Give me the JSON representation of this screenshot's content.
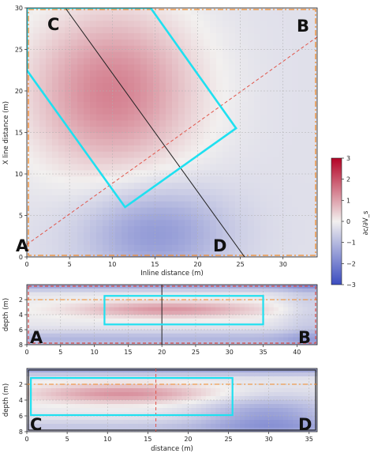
{
  "chart_data": [
    {
      "type": "heatmap",
      "panel": "plan-view",
      "xlabel": "Inline distance (m)",
      "ylabel": "X line distance (m)",
      "xlim": [
        0,
        34
      ],
      "ylim": [
        0,
        30
      ],
      "xticks": [
        0,
        5,
        10,
        15,
        20,
        25,
        30
      ],
      "yticks": [
        0,
        5,
        10,
        15,
        20,
        25,
        30
      ],
      "grid": true,
      "corner_labels": [
        "A",
        "B",
        "C",
        "D"
      ],
      "profile_AB": {
        "from": [
          0,
          1.5
        ],
        "to": [
          34,
          26.5
        ]
      },
      "profile_CD": {
        "from": [
          4.5,
          30
        ],
        "to": [
          25.5,
          0
        ]
      },
      "survey_box": [
        [
          0,
          22.5
        ],
        [
          11.5,
          6
        ],
        [
          24.5,
          15.5
        ],
        [
          14.5,
          30
        ],
        [
          0,
          30
        ]
      ],
      "field": {
        "background": -0.3,
        "anomalies": [
          {
            "sign": "positive",
            "x": 10,
            "y": 20,
            "amplitude": 1.4
          },
          {
            "sign": "negative",
            "x": 15,
            "y": 3,
            "amplitude": -1.6
          }
        ]
      }
    },
    {
      "type": "heatmap",
      "panel": "section-AB",
      "ylabel": "depth (m)",
      "xlim": [
        0,
        43
      ],
      "ylim": [
        8,
        0
      ],
      "xticks": [
        0,
        5,
        10,
        15,
        20,
        25,
        30,
        35,
        40
      ],
      "yticks": [
        2,
        4,
        6,
        8
      ],
      "grid": true,
      "corner_labels": [
        "A",
        "B"
      ],
      "reference_depth": 2,
      "crossing_line_x": 20,
      "box": {
        "x": [
          11.5,
          35
        ],
        "depth": [
          1.5,
          5.3
        ]
      },
      "anomaly": {
        "x": 21,
        "depth": 3.3,
        "amplitude": 1.2
      }
    },
    {
      "type": "heatmap",
      "panel": "section-CD",
      "xlabel": "distance (m)",
      "ylabel": "depth (m)",
      "xlim": [
        0,
        36
      ],
      "ylim": [
        8,
        0
      ],
      "xticks": [
        0,
        5,
        10,
        15,
        20,
        25,
        30,
        35
      ],
      "yticks": [
        2,
        4,
        6,
        8
      ],
      "grid": true,
      "corner_labels": [
        "C",
        "D"
      ],
      "reference_depth": 2,
      "crossing_line_x": 16,
      "box": {
        "x": [
          0.5,
          25.5
        ],
        "depth": [
          1.2,
          5.9
        ]
      },
      "anomaly": {
        "x": 12,
        "depth": 3.2,
        "amplitude": 1.2
      }
    }
  ],
  "colorbar": {
    "label": "∂c/∂V_s",
    "min": -3,
    "max": 3,
    "ticks": [
      -3,
      -2,
      -1,
      0,
      1,
      2,
      3
    ],
    "tick_labels": [
      "−3",
      "−2",
      "−1",
      "0",
      "1",
      "2",
      "3"
    ],
    "colors": {
      "neg": "#3b4cc0",
      "mid": "#f2f0ef",
      "pos": "#b40426"
    }
  }
}
